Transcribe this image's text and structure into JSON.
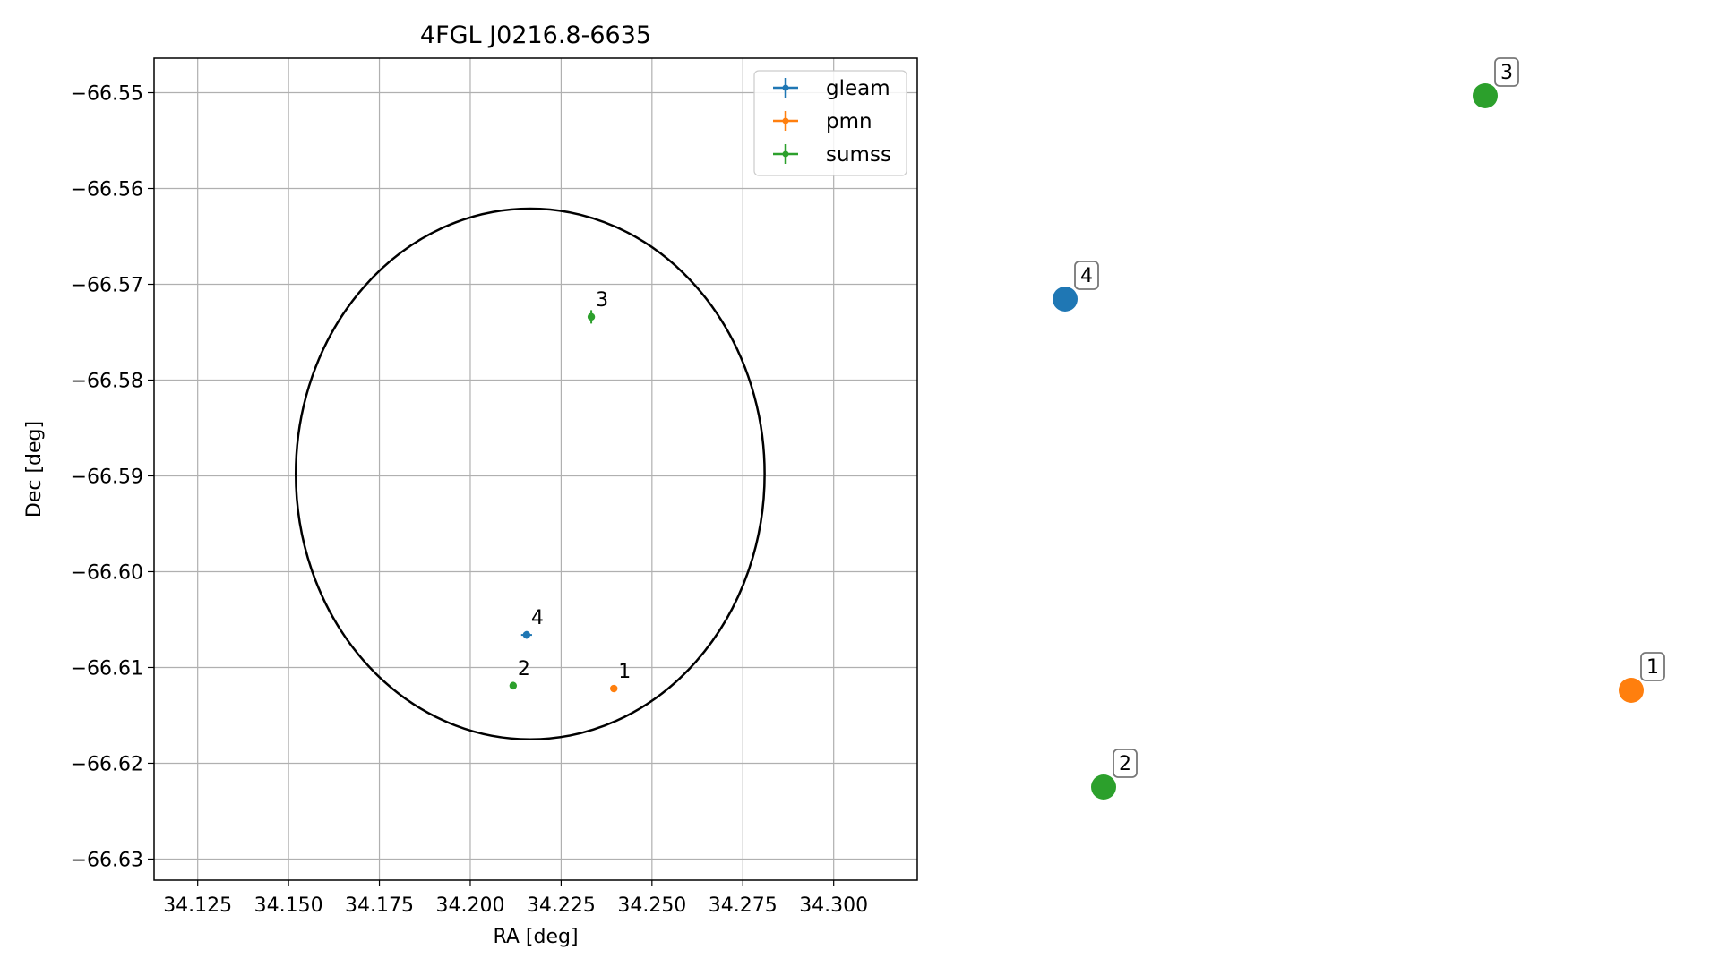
{
  "chart_data": {
    "type": "scatter",
    "title": "4FGL J0216.8-6635",
    "xlabel": "RA [deg]",
    "ylabel": "Dec [deg]",
    "xlim": [
      34.113,
      34.323
    ],
    "ylim": [
      -66.6322,
      -66.5464
    ],
    "grid": true,
    "legend_position": "top-right",
    "x_ticks": [
      34.125,
      34.15,
      34.175,
      34.2,
      34.225,
      34.25,
      34.275,
      34.3
    ],
    "x_tick_labels": [
      "34.125",
      "34.150",
      "34.175",
      "34.200",
      "34.225",
      "34.250",
      "34.275",
      "34.300"
    ],
    "y_ticks": [
      -66.55,
      -66.56,
      -66.57,
      -66.58,
      -66.59,
      -66.6,
      -66.61,
      -66.62,
      -66.63
    ],
    "y_tick_labels": [
      "−66.55",
      "−66.56",
      "−66.57",
      "−66.58",
      "−66.59",
      "−66.60",
      "−66.61",
      "−66.62",
      "−66.63"
    ],
    "ellipse": {
      "center_ra": 34.2165,
      "center_dec": -66.5898,
      "ra_half_width": 0.0645,
      "dec_half_height": 0.0277,
      "color": "#000000"
    },
    "series": [
      {
        "name": "gleam",
        "color": "#1f77b4",
        "points": [
          {
            "label": "4",
            "ra": 34.2155,
            "dec": -66.6066,
            "ra_err": 0.0015,
            "dec_err": 0.0004
          }
        ]
      },
      {
        "name": "pmn",
        "color": "#ff7f0e",
        "points": [
          {
            "label": "1",
            "ra": 34.2395,
            "dec": -66.6122,
            "ra_err": 0.0,
            "dec_err": 0.0
          }
        ]
      },
      {
        "name": "sumss",
        "color": "#2ca02c",
        "points": [
          {
            "label": "3",
            "ra": 34.2333,
            "dec": -66.5734,
            "ra_err": 0.0003,
            "dec_err": 0.0007
          },
          {
            "label": "2",
            "ra": 34.2118,
            "dec": -66.6119,
            "ra_err": 0.0003,
            "dec_err": 0.0004
          }
        ]
      }
    ],
    "side_panel": {
      "markers": [
        {
          "label": "3",
          "color": "#2ca02c"
        },
        {
          "label": "4",
          "color": "#1f77b4"
        },
        {
          "label": "1",
          "color": "#ff7f0e"
        },
        {
          "label": "2",
          "color": "#2ca02c"
        }
      ]
    }
  }
}
